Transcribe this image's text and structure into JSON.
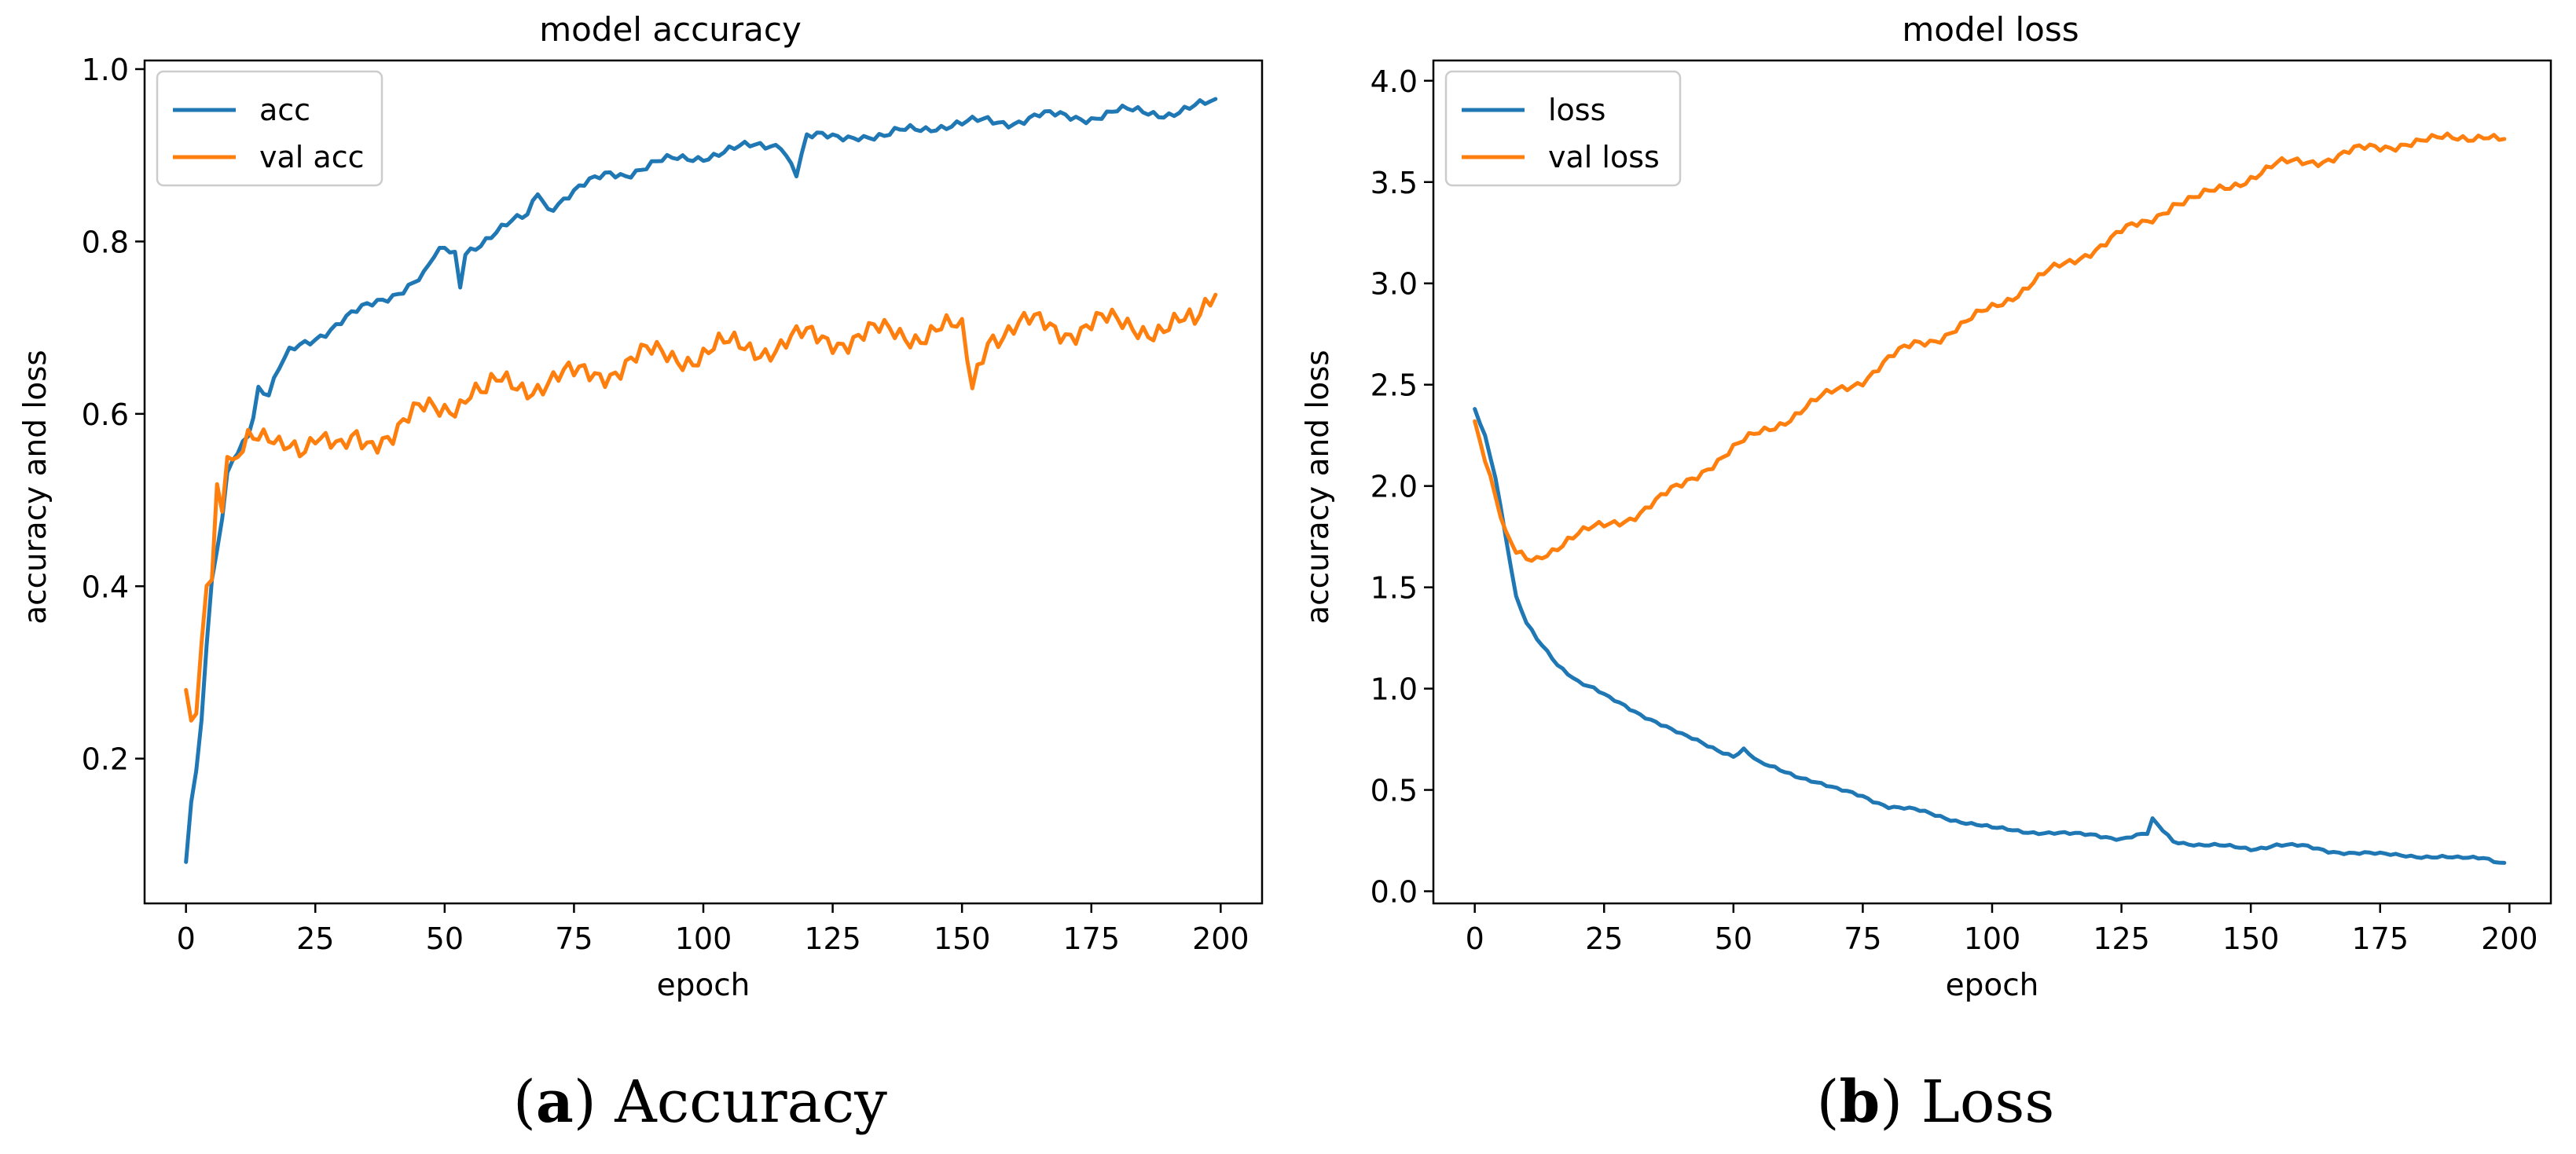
{
  "figure": {
    "caption_a_letter": "a",
    "caption_a_text": "Accuracy",
    "caption_b_letter": "b",
    "caption_b_text": "Loss"
  },
  "chart_data": [
    {
      "type": "line",
      "title": "model accuracy",
      "xlabel": "epoch",
      "ylabel": "accuracy and loss",
      "xlim": [
        -8,
        208
      ],
      "ylim": [
        0.032,
        1.01
      ],
      "xticks": [
        0,
        25,
        50,
        75,
        100,
        125,
        150,
        175,
        200
      ],
      "xtick_labels": [
        "0",
        "25",
        "50",
        "75",
        "100",
        "125",
        "150",
        "175",
        "200"
      ],
      "yticks": [
        0.2,
        0.4,
        0.6,
        0.8,
        1.0
      ],
      "ytick_labels": [
        "0.2",
        "0.4",
        "0.6",
        "0.8",
        "1.0"
      ],
      "legend_position": "top-left",
      "series": [
        {
          "name": "acc",
          "color": "#1f77b4",
          "points": [
            [
              0,
              0.08
            ],
            [
              1,
              0.15
            ],
            [
              2,
              0.18
            ],
            [
              3,
              0.24
            ],
            [
              4,
              0.33
            ],
            [
              5,
              0.4
            ],
            [
              6,
              0.44
            ],
            [
              7,
              0.48
            ],
            [
              8,
              0.53
            ],
            [
              9,
              0.55
            ],
            [
              10,
              0.56
            ],
            [
              11,
              0.57
            ],
            [
              12,
              0.58
            ],
            [
              13,
              0.6
            ],
            [
              14,
              0.63
            ],
            [
              16,
              0.62
            ],
            [
              18,
              0.65
            ],
            [
              20,
              0.67
            ],
            [
              22,
              0.68
            ],
            [
              25,
              0.69
            ],
            [
              28,
              0.7
            ],
            [
              31,
              0.71
            ],
            [
              34,
              0.72
            ],
            [
              37,
              0.73
            ],
            [
              40,
              0.74
            ],
            [
              43,
              0.75
            ],
            [
              46,
              0.76
            ],
            [
              48,
              0.78
            ],
            [
              50,
              0.79
            ],
            [
              52,
              0.785
            ],
            [
              53,
              0.75
            ],
            [
              54,
              0.79
            ],
            [
              57,
              0.8
            ],
            [
              60,
              0.81
            ],
            [
              63,
              0.82
            ],
            [
              66,
              0.83
            ],
            [
              68,
              0.86
            ],
            [
              70,
              0.84
            ],
            [
              73,
              0.85
            ],
            [
              76,
              0.86
            ],
            [
              79,
              0.87
            ],
            [
              82,
              0.88
            ],
            [
              85,
              0.88
            ],
            [
              88,
              0.885
            ],
            [
              91,
              0.89
            ],
            [
              95,
              0.895
            ],
            [
              100,
              0.9
            ],
            [
              105,
              0.905
            ],
            [
              110,
              0.91
            ],
            [
              115,
              0.915
            ],
            [
              118,
              0.88
            ],
            [
              120,
              0.92
            ],
            [
              125,
              0.92
            ],
            [
              130,
              0.925
            ],
            [
              135,
              0.92
            ],
            [
              140,
              0.93
            ],
            [
              145,
              0.935
            ],
            [
              150,
              0.935
            ],
            [
              155,
              0.94
            ],
            [
              160,
              0.94
            ],
            [
              165,
              0.945
            ],
            [
              170,
              0.945
            ],
            [
              175,
              0.945
            ],
            [
              180,
              0.95
            ],
            [
              185,
              0.95
            ],
            [
              190,
              0.95
            ],
            [
              195,
              0.955
            ],
            [
              199,
              0.96
            ]
          ],
          "noise": 0.008
        },
        {
          "name": "val acc",
          "color": "#ff7f0e",
          "points": [
            [
              0,
              0.26
            ],
            [
              1,
              0.23
            ],
            [
              2,
              0.25
            ],
            [
              3,
              0.32
            ],
            [
              4,
              0.4
            ],
            [
              5,
              0.42
            ],
            [
              6,
              0.52
            ],
            [
              7,
              0.5
            ],
            [
              8,
              0.57
            ],
            [
              9,
              0.55
            ],
            [
              10,
              0.56
            ],
            [
              12,
              0.57
            ],
            [
              15,
              0.56
            ],
            [
              18,
              0.56
            ],
            [
              20,
              0.57
            ],
            [
              23,
              0.57
            ],
            [
              25,
              0.58
            ],
            [
              28,
              0.56
            ],
            [
              30,
              0.55
            ],
            [
              33,
              0.57
            ],
            [
              35,
              0.57
            ],
            [
              38,
              0.58
            ],
            [
              40,
              0.58
            ],
            [
              43,
              0.59
            ],
            [
              46,
              0.6
            ],
            [
              50,
              0.61
            ],
            [
              53,
              0.62
            ],
            [
              55,
              0.63
            ],
            [
              58,
              0.62
            ],
            [
              60,
              0.63
            ],
            [
              65,
              0.635
            ],
            [
              70,
              0.64
            ],
            [
              75,
              0.64
            ],
            [
              80,
              0.65
            ],
            [
              85,
              0.66
            ],
            [
              90,
              0.665
            ],
            [
              95,
              0.67
            ],
            [
              100,
              0.67
            ],
            [
              105,
              0.675
            ],
            [
              110,
              0.68
            ],
            [
              115,
              0.68
            ],
            [
              120,
              0.685
            ],
            [
              125,
              0.69
            ],
            [
              130,
              0.69
            ],
            [
              135,
              0.69
            ],
            [
              140,
              0.695
            ],
            [
              145,
              0.7
            ],
            [
              150,
              0.69
            ],
            [
              152,
              0.63
            ],
            [
              155,
              0.695
            ],
            [
              160,
              0.7
            ],
            [
              165,
              0.7
            ],
            [
              170,
              0.7
            ],
            [
              175,
              0.705
            ],
            [
              180,
              0.7
            ],
            [
              185,
              0.705
            ],
            [
              190,
              0.7
            ],
            [
              195,
              0.7
            ],
            [
              199,
              0.75
            ]
          ],
          "noise": 0.022
        }
      ]
    },
    {
      "type": "line",
      "title": "model loss",
      "xlabel": "epoch",
      "ylabel": "accuracy and loss",
      "xlim": [
        -8,
        208
      ],
      "ylim": [
        -0.06,
        4.1
      ],
      "xticks": [
        0,
        25,
        50,
        75,
        100,
        125,
        150,
        175,
        200
      ],
      "xtick_labels": [
        "0",
        "25",
        "50",
        "75",
        "100",
        "125",
        "150",
        "175",
        "200"
      ],
      "yticks": [
        0.0,
        0.5,
        1.0,
        1.5,
        2.0,
        2.5,
        3.0,
        3.5,
        4.0
      ],
      "ytick_labels": [
        "0.0",
        "0.5",
        "1.0",
        "1.5",
        "2.0",
        "2.5",
        "3.0",
        "3.5",
        "4.0"
      ],
      "legend_position": "top-left",
      "series": [
        {
          "name": "loss",
          "color": "#1f77b4",
          "points": [
            [
              0,
              2.38
            ],
            [
              2,
              2.25
            ],
            [
              4,
              2.05
            ],
            [
              6,
              1.75
            ],
            [
              8,
              1.45
            ],
            [
              10,
              1.32
            ],
            [
              12,
              1.24
            ],
            [
              14,
              1.18
            ],
            [
              16,
              1.12
            ],
            [
              18,
              1.08
            ],
            [
              20,
              1.04
            ],
            [
              23,
              1.0
            ],
            [
              26,
              0.95
            ],
            [
              30,
              0.9
            ],
            [
              35,
              0.84
            ],
            [
              40,
              0.77
            ],
            [
              45,
              0.72
            ],
            [
              50,
              0.67
            ],
            [
              52,
              0.7
            ],
            [
              55,
              0.63
            ],
            [
              60,
              0.59
            ],
            [
              65,
              0.55
            ],
            [
              70,
              0.5
            ],
            [
              75,
              0.47
            ],
            [
              80,
              0.42
            ],
            [
              85,
              0.4
            ],
            [
              90,
              0.37
            ],
            [
              95,
              0.34
            ],
            [
              100,
              0.31
            ],
            [
              105,
              0.3
            ],
            [
              110,
              0.29
            ],
            [
              115,
              0.28
            ],
            [
              120,
              0.28
            ],
            [
              125,
              0.26
            ],
            [
              130,
              0.28
            ],
            [
              131,
              0.35
            ],
            [
              135,
              0.25
            ],
            [
              140,
              0.23
            ],
            [
              145,
              0.22
            ],
            [
              150,
              0.21
            ],
            [
              155,
              0.23
            ],
            [
              160,
              0.22
            ],
            [
              165,
              0.2
            ],
            [
              170,
              0.19
            ],
            [
              175,
              0.18
            ],
            [
              180,
              0.18
            ],
            [
              185,
              0.17
            ],
            [
              190,
              0.16
            ],
            [
              195,
              0.17
            ],
            [
              199,
              0.14
            ]
          ],
          "noise": 0.012
        },
        {
          "name": "val loss",
          "color": "#ff7f0e",
          "points": [
            [
              0,
              2.33
            ],
            [
              2,
              2.15
            ],
            [
              4,
              1.95
            ],
            [
              6,
              1.75
            ],
            [
              8,
              1.66
            ],
            [
              10,
              1.63
            ],
            [
              12,
              1.64
            ],
            [
              14,
              1.68
            ],
            [
              16,
              1.71
            ],
            [
              18,
              1.74
            ],
            [
              20,
              1.76
            ],
            [
              25,
              1.8
            ],
            [
              30,
              1.85
            ],
            [
              35,
              1.92
            ],
            [
              40,
              2.0
            ],
            [
              45,
              2.1
            ],
            [
              50,
              2.18
            ],
            [
              55,
              2.26
            ],
            [
              60,
              2.33
            ],
            [
              65,
              2.4
            ],
            [
              70,
              2.47
            ],
            [
              75,
              2.53
            ],
            [
              80,
              2.62
            ],
            [
              85,
              2.7
            ],
            [
              90,
              2.74
            ],
            [
              95,
              2.8
            ],
            [
              100,
              2.88
            ],
            [
              105,
              2.96
            ],
            [
              110,
              3.04
            ],
            [
              115,
              3.1
            ],
            [
              120,
              3.18
            ],
            [
              125,
              3.25
            ],
            [
              130,
              3.3
            ],
            [
              135,
              3.4
            ],
            [
              140,
              3.42
            ],
            [
              145,
              3.47
            ],
            [
              150,
              3.53
            ],
            [
              155,
              3.58
            ],
            [
              160,
              3.6
            ],
            [
              165,
              3.62
            ],
            [
              170,
              3.65
            ],
            [
              175,
              3.67
            ],
            [
              180,
              3.7
            ],
            [
              185,
              3.7
            ],
            [
              190,
              3.72
            ],
            [
              195,
              3.74
            ],
            [
              199,
              3.7
            ]
          ],
          "noise": 0.035
        }
      ]
    }
  ]
}
